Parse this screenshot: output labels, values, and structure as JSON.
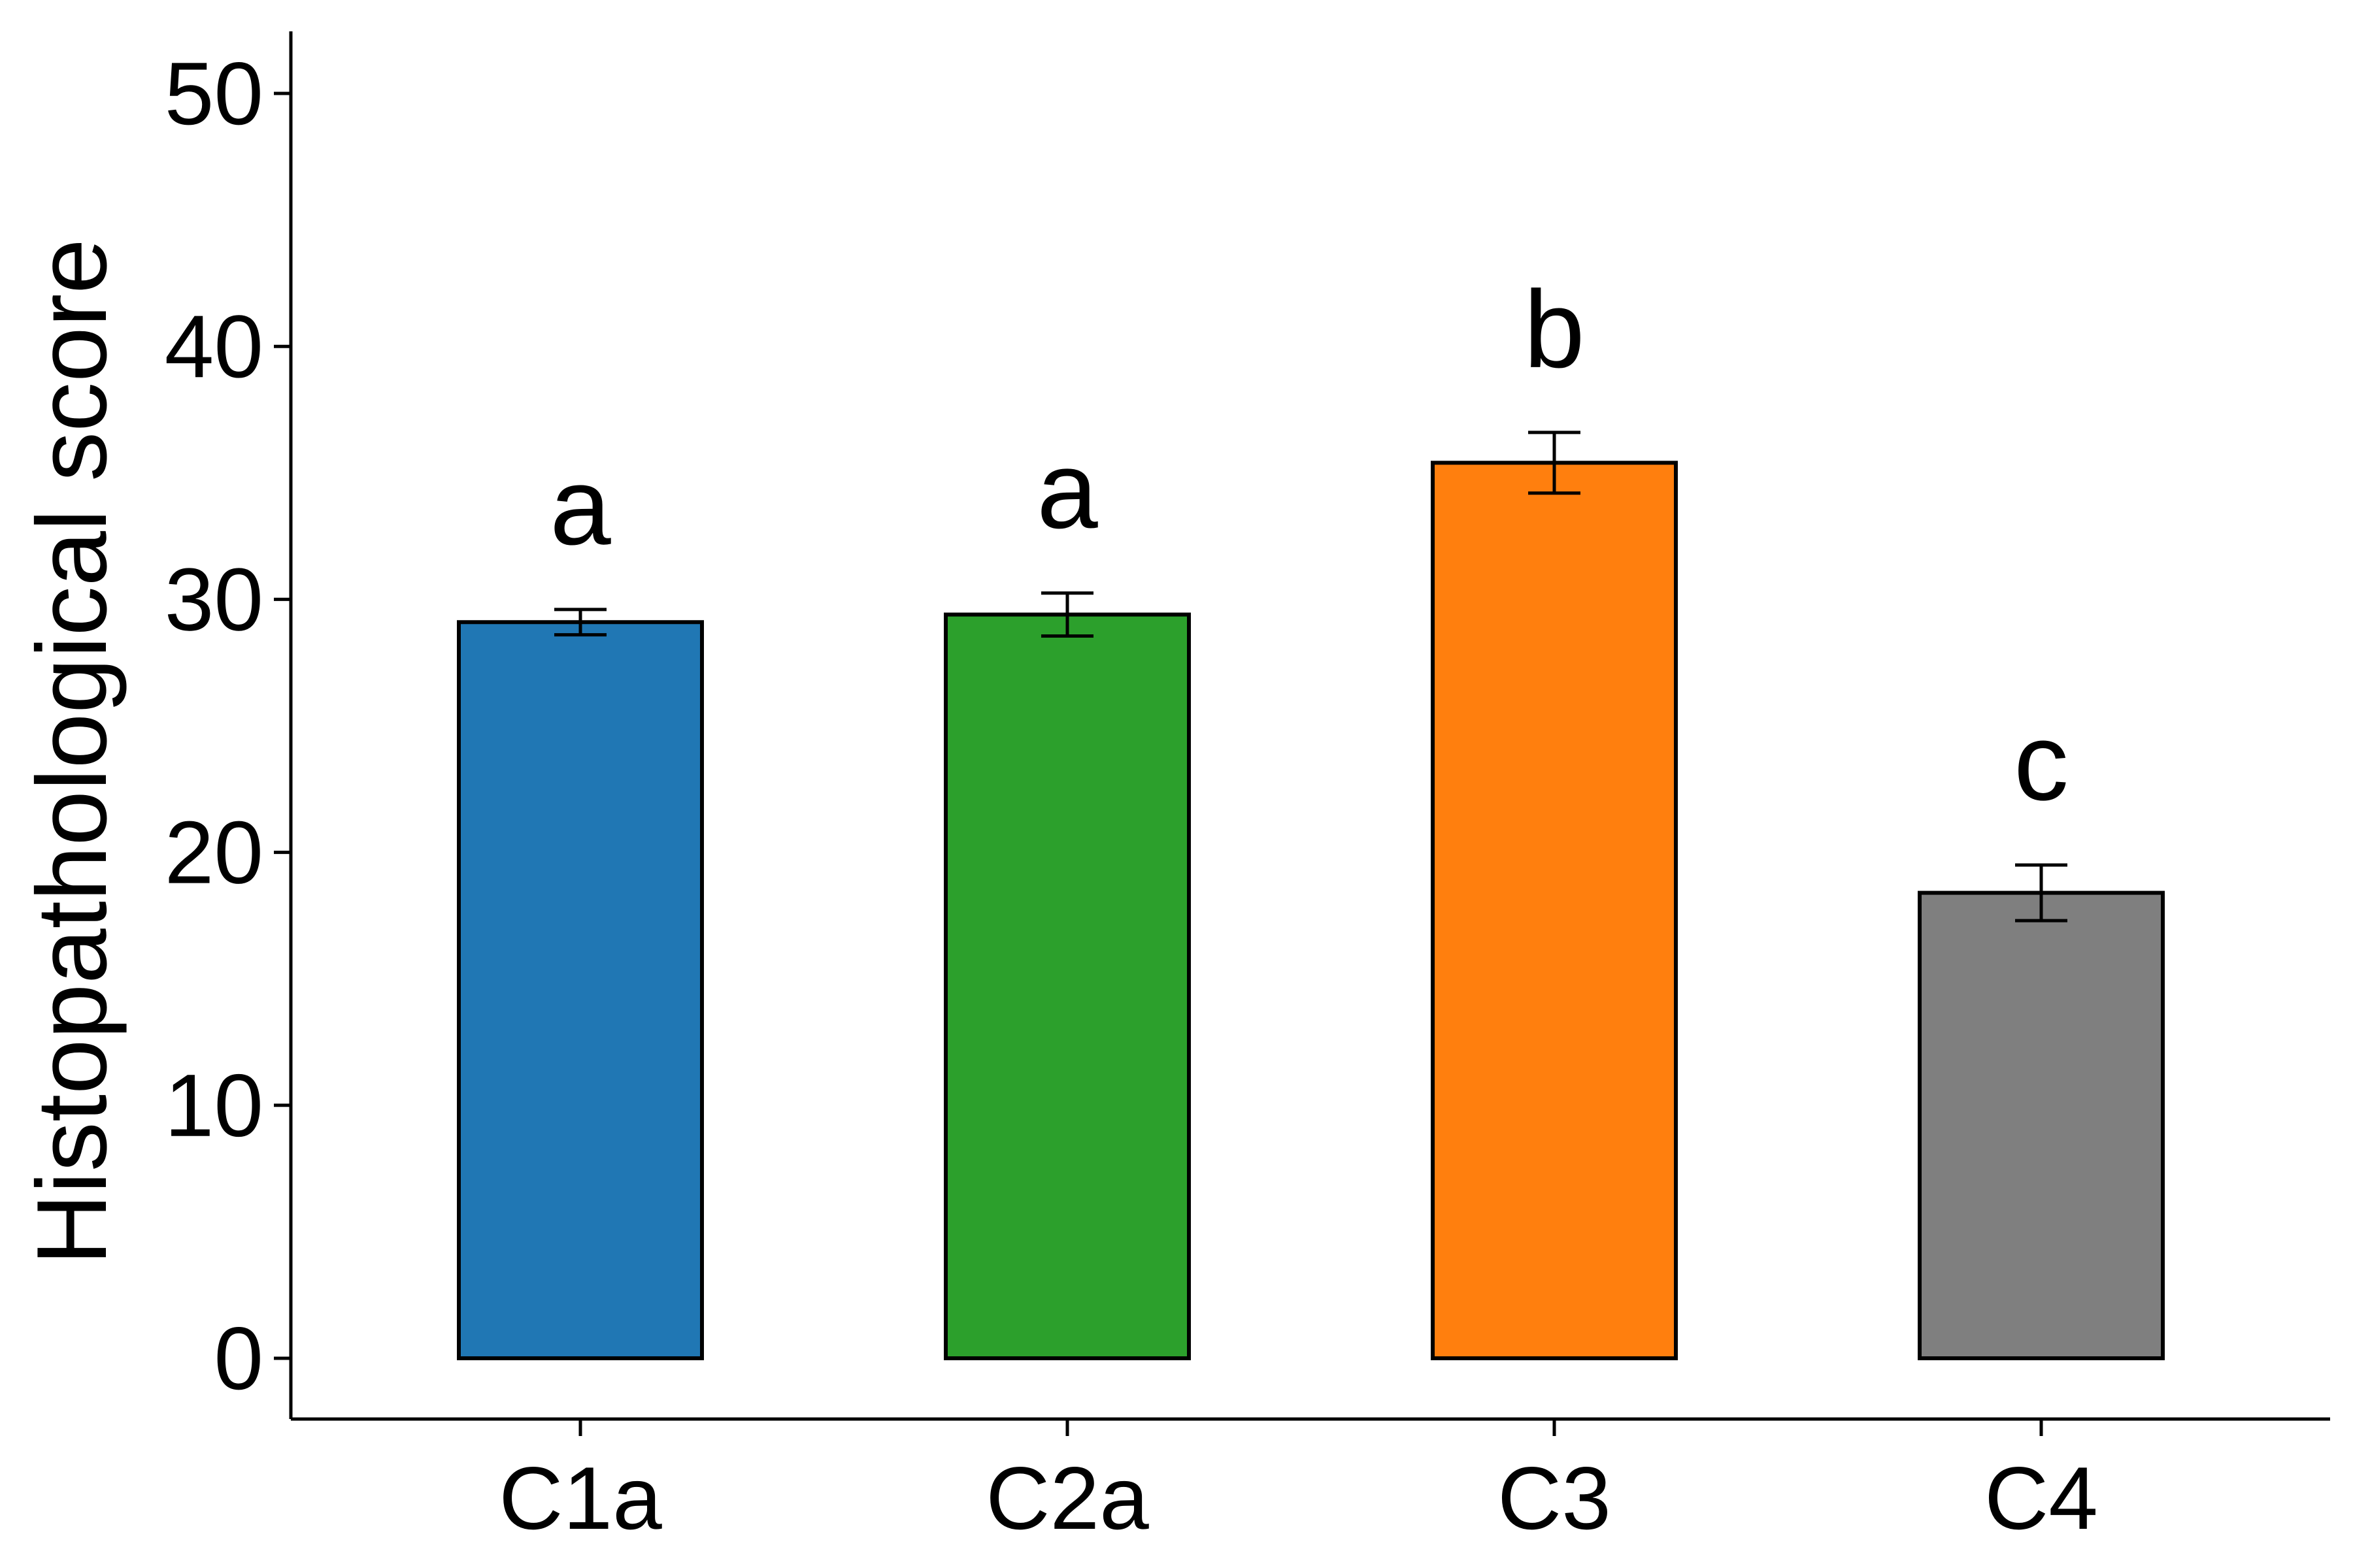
{
  "chart_data": {
    "type": "bar",
    "title": "",
    "xlabel": "",
    "ylabel": "Histopathological score",
    "categories": [
      "C1a",
      "C2a",
      "C3",
      "C4"
    ],
    "values": [
      29.1,
      29.4,
      35.4,
      18.4
    ],
    "errors": [
      0.5,
      0.85,
      1.2,
      1.1
    ],
    "colors": [
      "#2077b4",
      "#2ca02c",
      "#ff7f0e",
      "#7f7f7f"
    ],
    "significance_labels": [
      "a",
      "a",
      "b",
      "c"
    ],
    "ylim": [
      -2.4,
      52.4
    ],
    "yticks": [
      0,
      10,
      20,
      30,
      40,
      50
    ],
    "ytick_labels": [
      "0",
      "10",
      "20",
      "30",
      "40",
      "50"
    ],
    "grid": false,
    "legend": false
  }
}
